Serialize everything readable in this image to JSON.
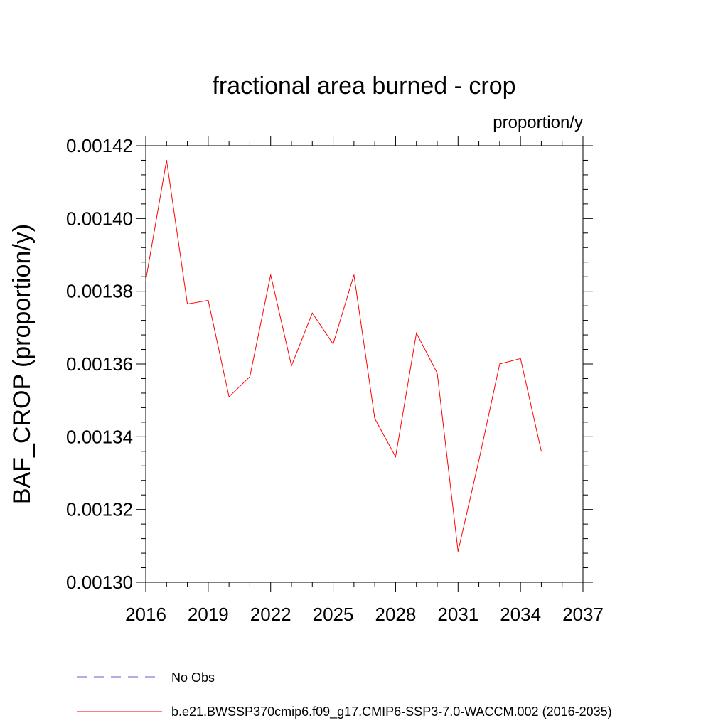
{
  "chart_data": {
    "type": "line",
    "title": "fractional area burned - crop",
    "units": "proportion/y",
    "ylabel": "BAF_CROP  (proportion/y)",
    "xlabel": "",
    "xlim": [
      2016,
      2037
    ],
    "ylim": [
      0.0013,
      0.00142
    ],
    "x_ticks": [
      "2016",
      "2019",
      "2022",
      "2025",
      "2028",
      "2031",
      "2034",
      "2037"
    ],
    "x_tick_values": [
      2016,
      2019,
      2022,
      2025,
      2028,
      2031,
      2034,
      2037
    ],
    "y_ticks": [
      "0.00130",
      "0.00132",
      "0.00134",
      "0.00136",
      "0.00138",
      "0.00140",
      "0.00142"
    ],
    "y_tick_values": [
      0.0013,
      0.00132,
      0.00134,
      0.00136,
      0.00138,
      0.0014,
      0.00142
    ],
    "grid": false,
    "series": [
      {
        "name": "b.e21.BWSSP370cmip6.f09_g17.CMIP6-SSP3-7.0-WACCM.002 (2016-2035)",
        "color": "#ff0000",
        "style": "solid",
        "x": [
          2016,
          2017,
          2018,
          2019,
          2020,
          2021,
          2022,
          2023,
          2024,
          2025,
          2026,
          2027,
          2028,
          2029,
          2030,
          2031,
          2032,
          2033,
          2034,
          2035
        ],
        "values": [
          0.001383,
          0.001416,
          0.0013765,
          0.0013775,
          0.001351,
          0.0013565,
          0.0013845,
          0.0013595,
          0.001374,
          0.0013655,
          0.0013845,
          0.001345,
          0.0013345,
          0.0013685,
          0.0013575,
          0.0013085,
          0.0013335,
          0.00136,
          0.0013615,
          0.001336
        ]
      }
    ],
    "legend": [
      {
        "label": "No Obs",
        "color": "#6a5acd",
        "style": "dashed"
      },
      {
        "label": "b.e21.BWSSP370cmip6.f09_g17.CMIP6-SSP3-7.0-WACCM.002 (2016-2035)",
        "color": "#ff0000",
        "style": "solid"
      }
    ]
  }
}
